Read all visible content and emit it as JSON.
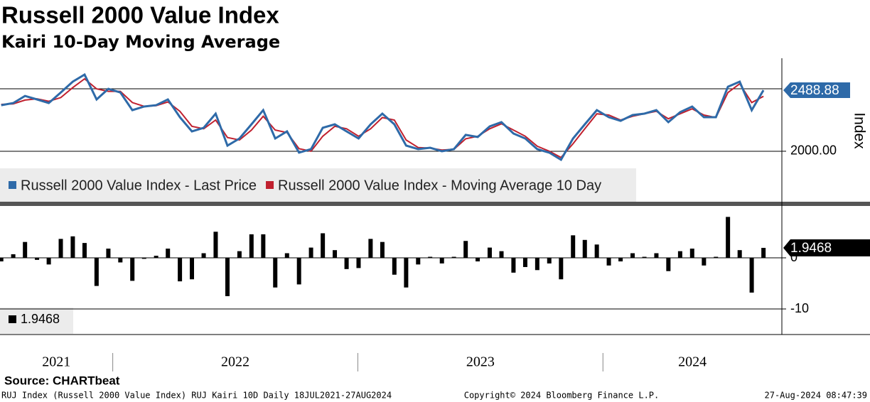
{
  "title": "Russell 2000 Value Index",
  "subtitle": "Kairi 10-Day Moving Average",
  "chart_data": [
    {
      "type": "line",
      "y_label": "Index",
      "x": [
        2021.545,
        2021.594,
        2021.642,
        2021.691,
        2021.739,
        2021.788,
        2021.837,
        2021.885,
        2021.934,
        2021.982,
        2022.031,
        2022.08,
        2022.128,
        2022.177,
        2022.225,
        2022.274,
        2022.323,
        2022.371,
        2022.42,
        2022.468,
        2022.517,
        2022.566,
        2022.614,
        2022.663,
        2022.711,
        2022.76,
        2022.809,
        2022.857,
        2022.906,
        2022.954,
        2023.003,
        2023.052,
        2023.1,
        2023.149,
        2023.197,
        2023.246,
        2023.295,
        2023.343,
        2023.392,
        2023.44,
        2023.489,
        2023.538,
        2023.586,
        2023.635,
        2023.683,
        2023.732,
        2023.781,
        2023.829,
        2023.878,
        2023.926,
        2023.975,
        2024.024,
        2024.072,
        2024.121,
        2024.169,
        2024.218,
        2024.267,
        2024.315,
        2024.364,
        2024.412,
        2024.461,
        2024.51,
        2024.558,
        2024.607,
        2024.655
      ],
      "series": [
        {
          "name": "Russell 2000 Value Index - Last Price",
          "color": "#2e6aa8",
          "values": [
            2369,
            2386,
            2443,
            2415,
            2386,
            2471,
            2557,
            2614,
            2415,
            2500,
            2471,
            2329,
            2358,
            2369,
            2415,
            2273,
            2159,
            2188,
            2301,
            2045,
            2102,
            2216,
            2329,
            2102,
            2159,
            1989,
            2017,
            2188,
            2216,
            2159,
            2102,
            2216,
            2301,
            2216,
            2045,
            2017,
            2028,
            2000,
            2017,
            2131,
            2114,
            2199,
            2233,
            2142,
            2102,
            2017,
            1989,
            1932,
            2102,
            2216,
            2329,
            2273,
            2244,
            2290,
            2301,
            2329,
            2233,
            2313,
            2358,
            2273,
            2273,
            2517,
            2557,
            2329,
            2488.88
          ]
        },
        {
          "name": "Russell 2000 Value Index - Moving Average 10 Day",
          "color": "#c0202e",
          "values": [
            2375,
            2380,
            2410,
            2420,
            2400,
            2430,
            2510,
            2580,
            2500,
            2480,
            2480,
            2390,
            2360,
            2365,
            2395,
            2320,
            2200,
            2180,
            2250,
            2110,
            2090,
            2170,
            2280,
            2170,
            2150,
            2020,
            2000,
            2120,
            2200,
            2180,
            2120,
            2180,
            2270,
            2250,
            2090,
            2030,
            2025,
            2010,
            2015,
            2100,
            2120,
            2180,
            2220,
            2170,
            2120,
            2040,
            2000,
            1950,
            2060,
            2180,
            2300,
            2290,
            2250,
            2280,
            2300,
            2320,
            2260,
            2300,
            2340,
            2290,
            2270,
            2470,
            2540,
            2390,
            2440
          ]
        }
      ],
      "xlim": [
        2021.54,
        2024.73
      ],
      "ylim": [
        1590,
        2745
      ],
      "yticks": [
        {
          "value": 2000,
          "label": "2000.00"
        }
      ],
      "ygrid": [
        2000,
        2500
      ],
      "grid": true
    },
    {
      "type": "bar",
      "x": [
        2021.545,
        2021.594,
        2021.642,
        2021.691,
        2021.739,
        2021.788,
        2021.837,
        2021.885,
        2021.934,
        2021.982,
        2022.031,
        2022.08,
        2022.128,
        2022.177,
        2022.225,
        2022.274,
        2022.323,
        2022.371,
        2022.42,
        2022.468,
        2022.517,
        2022.566,
        2022.614,
        2022.663,
        2022.711,
        2022.76,
        2022.809,
        2022.857,
        2022.906,
        2022.954,
        2023.003,
        2023.052,
        2023.1,
        2023.149,
        2023.197,
        2023.246,
        2023.295,
        2023.343,
        2023.392,
        2023.44,
        2023.489,
        2023.538,
        2023.586,
        2023.635,
        2023.683,
        2023.732,
        2023.781,
        2023.829,
        2023.878,
        2023.926,
        2023.975,
        2024.024,
        2024.072,
        2024.121,
        2024.169,
        2024.218,
        2024.267,
        2024.315,
        2024.364,
        2024.412,
        2024.461,
        2024.51,
        2024.558,
        2024.607,
        2024.655
      ],
      "series": [
        {
          "name": "1.9468",
          "color": "#000000",
          "values": [
            -0.7,
            0.7,
            3.1,
            -0.4,
            -1.3,
            3.7,
            4.2,
            2.9,
            -5.5,
            1.8,
            -0.9,
            -4.5,
            -0.2,
            0.4,
            1.8,
            -4.6,
            -4.2,
            0.9,
            5.1,
            -7.5,
            1.3,
            4.6,
            4.6,
            -5.8,
            0.9,
            -5.2,
            2.0,
            4.8,
            1.5,
            -2.2,
            -2.0,
            3.7,
            3.1,
            -3.3,
            -5.8,
            -1.3,
            0.2,
            -1.1,
            0.2,
            3.3,
            -0.7,
            2.0,
            1.3,
            -2.9,
            -1.8,
            -2.4,
            -1.1,
            -4.2,
            4.4,
            3.5,
            2.6,
            -1.5,
            -0.7,
            0.9,
            0.2,
            0.9,
            -2.6,
            1.3,
            1.8,
            -1.5,
            0.2,
            8.0,
            1.5,
            -6.8,
            1.9468
          ]
        }
      ],
      "xlim": [
        2021.54,
        2024.73
      ],
      "ylim": [
        -15,
        10
      ],
      "yticks": [
        -10,
        0
      ],
      "grid": true,
      "xticks": [
        {
          "value": 2021,
          "label": "2021"
        },
        {
          "value": 2022,
          "label": "2022"
        },
        {
          "value": 2023,
          "label": "2023"
        },
        {
          "value": 2024,
          "label": "2024"
        }
      ]
    }
  ],
  "source": "Source: CHARTbeat",
  "footer": {
    "left": "RUJ Index (Russell 2000 Value Index) RUJ Kairi 10D  Daily 18JUL2021-27AUG2024",
    "center": "Copyright© 2024 Bloomberg Finance L.P.",
    "right": "27-Aug-2024 08:47:39"
  }
}
